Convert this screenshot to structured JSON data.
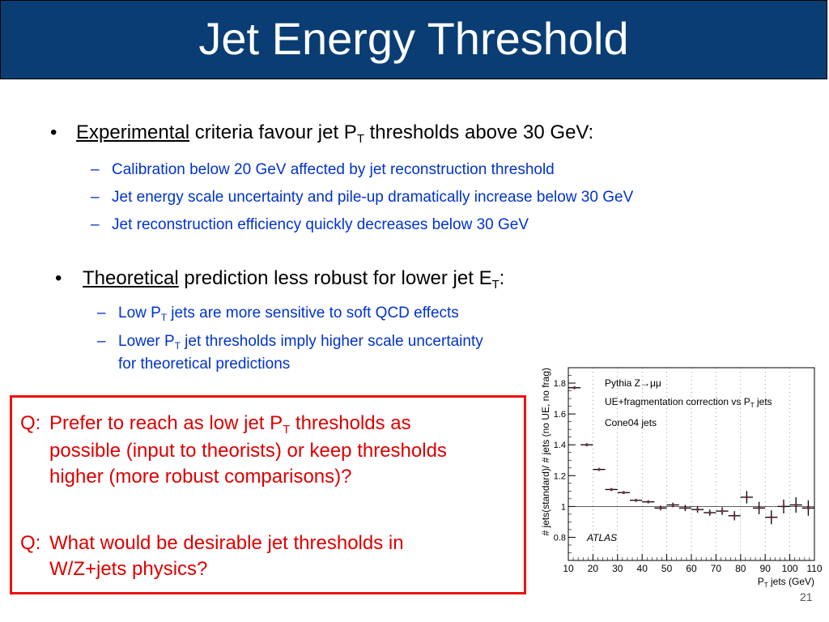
{
  "title": "Jet Energy Threshold",
  "bullet1": {
    "marker": "•",
    "underlined": "Experimental",
    "text_before_sub": " criteria favour jet P",
    "sub": "T",
    "text_after_sub": " thresholds above 30 GeV:",
    "items": [
      "Calibration below 20 GeV affected by jet reconstruction threshold",
      "Jet energy scale uncertainty and pile-up dramatically increase below 30 GeV",
      "Jet reconstruction efficiency quickly decreases below 30 GeV"
    ]
  },
  "bullet2": {
    "marker": "•",
    "underlined": "Theoretical",
    "text_before_sub": " prediction less robust for lower jet E",
    "sub": "T",
    "text_after_sub": ":",
    "item1": {
      "before": "Low P",
      "sub": "T",
      "after": " jets are more sensitive to soft QCD effects"
    },
    "item2": {
      "before": "Lower P",
      "sub": "T",
      "after": " jet thresholds imply higher scale uncertainty",
      "line2": "for theoretical predictions"
    }
  },
  "dash": "–",
  "questions": {
    "q1": {
      "label": "Q:",
      "line1_before": " Prefer to reach as low jet P",
      "line1_sub": "T",
      "line1_after": " thresholds as",
      "line2": "possible (input to theorists) or keep thresholds",
      "line3": "higher (more robust comparisons)?"
    },
    "q2": {
      "label": "Q:",
      "line1": "What would be desirable jet thresholds in",
      "line2": "W/Z+jets physics?"
    }
  },
  "page_number": "21",
  "colors": {
    "title_bg": "#0a3d73",
    "sub_text": "#0033cc",
    "question": "#dd0000",
    "marker": "#7a2a4a"
  },
  "chart_data": {
    "type": "scatter",
    "title": "",
    "legend_lines": [
      {
        "text": "Pythia Z",
        "arrow": "→",
        "tail": "μμ"
      },
      {
        "text": "UE+fragmentation correction vs P",
        "sub": "T",
        "tail": " jets"
      },
      {
        "text": "Cone04 jets",
        "sub": "",
        "tail": ""
      }
    ],
    "annotation": "ATLAS",
    "xlabel": {
      "main": "P",
      "sub": "T",
      "tail": " jets (GeV)"
    },
    "ylabel": "# jets(standard)/ # jets (no UE, no frag)",
    "xlim": [
      10,
      110
    ],
    "ylim": [
      0.65,
      1.9
    ],
    "xticks": [
      10,
      20,
      30,
      40,
      50,
      60,
      70,
      80,
      90,
      100,
      110
    ],
    "yticks": [
      0.8,
      1,
      1.2,
      1.4,
      1.6,
      1.8
    ],
    "ytick_labels": [
      "0.8",
      "1",
      "1.2",
      "1.4",
      "1.6",
      "1.8"
    ],
    "reference_line": 1,
    "points": [
      {
        "x": 12.5,
        "y": 1.77,
        "xerr": 2.5,
        "yerr": 0.01
      },
      {
        "x": 17.5,
        "y": 1.4,
        "xerr": 2.5,
        "yerr": 0.01
      },
      {
        "x": 22.5,
        "y": 1.24,
        "xerr": 2.5,
        "yerr": 0.01
      },
      {
        "x": 27.5,
        "y": 1.11,
        "xerr": 2.5,
        "yerr": 0.01
      },
      {
        "x": 32.5,
        "y": 1.09,
        "xerr": 2.5,
        "yerr": 0.01
      },
      {
        "x": 37.5,
        "y": 1.04,
        "xerr": 2.5,
        "yerr": 0.01
      },
      {
        "x": 42.5,
        "y": 1.03,
        "xerr": 2.5,
        "yerr": 0.01
      },
      {
        "x": 47.5,
        "y": 0.99,
        "xerr": 2.5,
        "yerr": 0.015
      },
      {
        "x": 52.5,
        "y": 1.01,
        "xerr": 2.5,
        "yerr": 0.015
      },
      {
        "x": 57.5,
        "y": 0.99,
        "xerr": 2.5,
        "yerr": 0.02
      },
      {
        "x": 62.5,
        "y": 0.98,
        "xerr": 2.5,
        "yerr": 0.02
      },
      {
        "x": 67.5,
        "y": 0.96,
        "xerr": 2.5,
        "yerr": 0.02
      },
      {
        "x": 72.5,
        "y": 0.97,
        "xerr": 2.5,
        "yerr": 0.025
      },
      {
        "x": 77.5,
        "y": 0.94,
        "xerr": 2.5,
        "yerr": 0.03
      },
      {
        "x": 82.5,
        "y": 1.06,
        "xerr": 2.5,
        "yerr": 0.04
      },
      {
        "x": 87.5,
        "y": 0.99,
        "xerr": 2.5,
        "yerr": 0.04
      },
      {
        "x": 92.5,
        "y": 0.93,
        "xerr": 2.5,
        "yerr": 0.045
      },
      {
        "x": 97.5,
        "y": 1.0,
        "xerr": 2.5,
        "yerr": 0.045
      },
      {
        "x": 102.5,
        "y": 1.01,
        "xerr": 2.5,
        "yerr": 0.05
      },
      {
        "x": 107.5,
        "y": 0.99,
        "xerr": 2.5,
        "yerr": 0.05
      }
    ]
  }
}
